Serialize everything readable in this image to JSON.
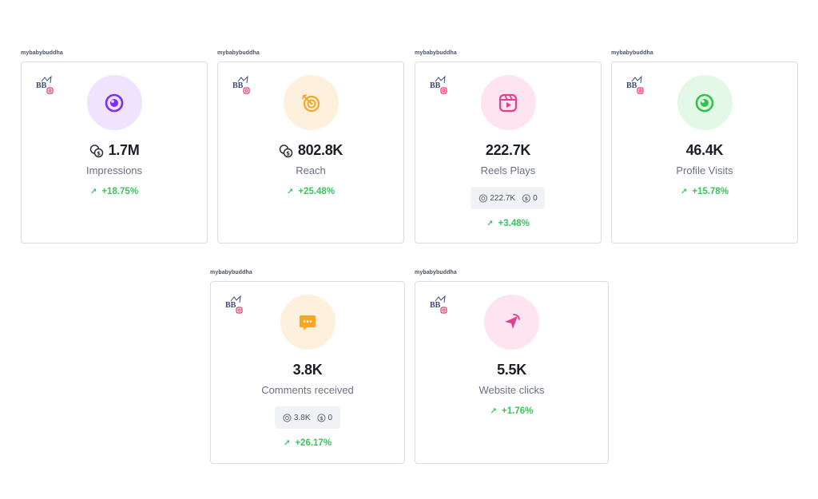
{
  "colors": {
    "positive": "#39c45a",
    "impressions_accent": "#7b2ff7",
    "reach_accent": "#f5a623",
    "reels_accent": "#e23f8f",
    "profile_accent": "#2ec44a",
    "comments_accent": "#f5a623",
    "website_accent": "#e23f8f"
  },
  "cards": [
    {
      "account": "mybabybuddha",
      "icon": "eye-icon",
      "value": "1.7M",
      "label": "Impressions",
      "change": "+18.75%",
      "has_coins": true
    },
    {
      "account": "mybabybuddha",
      "icon": "target-icon",
      "value": "802.8K",
      "label": "Reach",
      "change": "+25.48%",
      "has_coins": true
    },
    {
      "account": "mybabybuddha",
      "icon": "reels-play-icon",
      "value": "222.7K",
      "label": "Reels Plays",
      "breakdown": {
        "organic": "222.7K",
        "paid": "0"
      },
      "change": "+3.48%"
    },
    {
      "account": "mybabybuddha",
      "icon": "profile-visit-icon",
      "value": "46.4K",
      "label": "Profile Visits",
      "change": "+15.78%"
    },
    {
      "account": "mybabybuddha",
      "icon": "comment-icon",
      "value": "3.8K",
      "label": "Comments received",
      "breakdown": {
        "organic": "3.8K",
        "paid": "0"
      },
      "change": "+26.17%"
    },
    {
      "account": "mybabybuddha",
      "icon": "cursor-click-icon",
      "value": "5.5K",
      "label": "Website clicks",
      "change": "+1.76%"
    }
  ]
}
